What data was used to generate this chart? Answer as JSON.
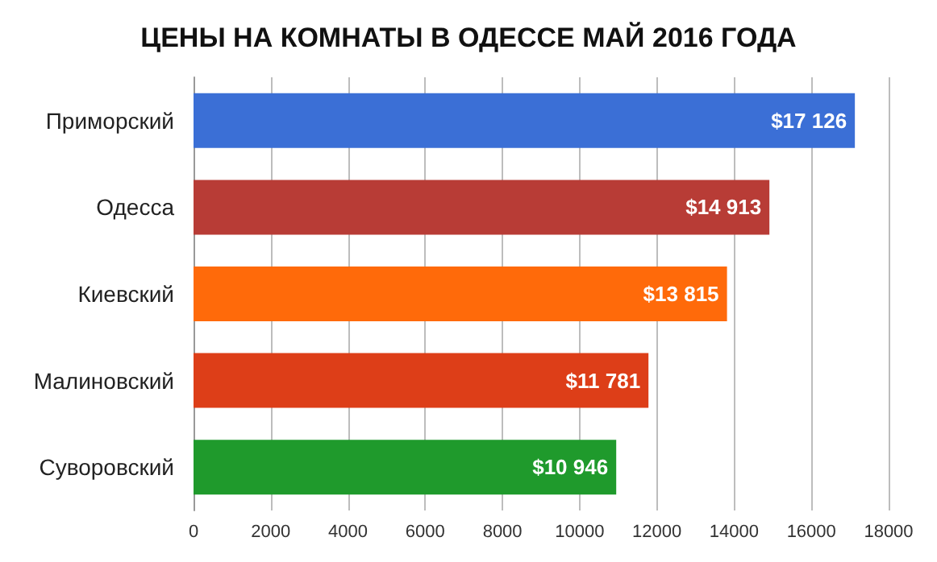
{
  "chart_data": {
    "type": "bar",
    "orientation": "horizontal",
    "title": "ЦЕНЫ НА КОМНАТЫ В ОДЕССЕ МАЙ 2016 ГОДА",
    "categories": [
      "Приморский",
      "Одесса",
      "Киевский",
      "Малиновский",
      "Суворовский"
    ],
    "values": [
      17126,
      14913,
      13815,
      11781,
      10946
    ],
    "colors": [
      "#3b6fd6",
      "#b83c36",
      "#ff6a0a",
      "#dd3e18",
      "#1f9a2c"
    ],
    "value_labels": [
      "$17 126",
      "$14 913",
      "$13 815",
      "$11 781",
      "$10 946"
    ],
    "xlim": [
      0,
      18000
    ],
    "xticks": [
      0,
      2000,
      4000,
      6000,
      8000,
      10000,
      12000,
      14000,
      16000,
      18000
    ],
    "grid": "x"
  }
}
